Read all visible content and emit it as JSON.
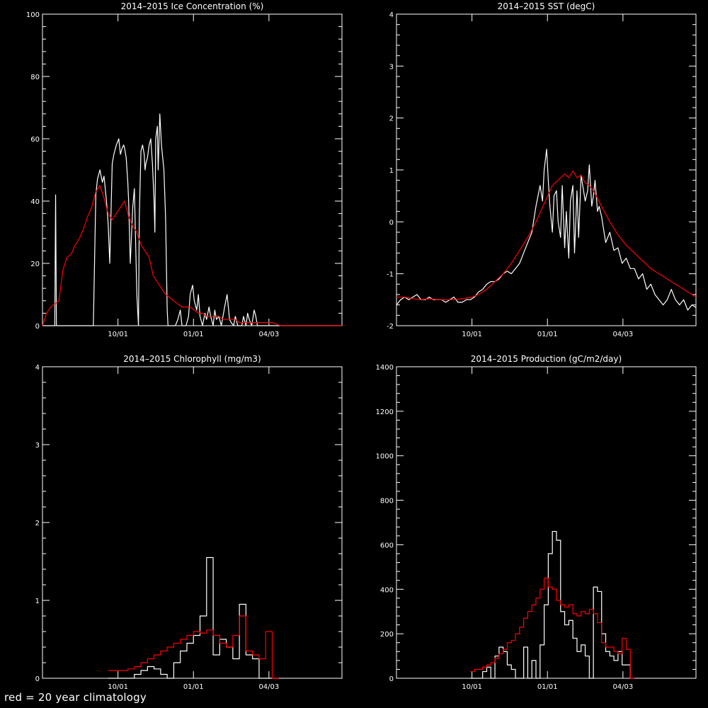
{
  "footnote": "red = 20 year climatology",
  "colors": {
    "background": "#000000",
    "axes": "#ffffff",
    "observed": "#ffffff",
    "climatology": "#ff0000"
  },
  "chart_data": [
    {
      "type": "line",
      "title": "2014–2015 Ice Concentration (%)",
      "xlabel": "",
      "ylabel": "",
      "xlim": [
        0,
        365
      ],
      "ylim": [
        0,
        100
      ],
      "xticks": [
        {
          "pos": 92,
          "label": "10/01"
        },
        {
          "pos": 184,
          "label": "01/01"
        },
        {
          "pos": 276,
          "label": "04/03"
        }
      ],
      "yticks": [
        0,
        20,
        40,
        60,
        80,
        100
      ],
      "step": false,
      "series": [
        {
          "role": "observed",
          "x": [
            0,
            10,
            15,
            16,
            17,
            20,
            22,
            23,
            26,
            28,
            30,
            33,
            35,
            37,
            40,
            42,
            45,
            48,
            50,
            52,
            55,
            58,
            60,
            62,
            65,
            67,
            70,
            73,
            75,
            78,
            80,
            82,
            85,
            87,
            90,
            93,
            95,
            97,
            99,
            100,
            102,
            104,
            105,
            106,
            107,
            110,
            112,
            115,
            117,
            118,
            120,
            122,
            124,
            125,
            126,
            128,
            130,
            132,
            134,
            136,
            137,
            138,
            140,
            141,
            143,
            145,
            148,
            150,
            151,
            152,
            153,
            155,
            156,
            157,
            160,
            162,
            165,
            168,
            170,
            172,
            175,
            178,
            180,
            183,
            185,
            188,
            190,
            192,
            195,
            198,
            200,
            203,
            205,
            208,
            210,
            212,
            215,
            218,
            220,
            222,
            225,
            228,
            230,
            233,
            235,
            238,
            240,
            243,
            245,
            248,
            250,
            252,
            255,
            258,
            260,
            262,
            265,
            270,
            275,
            280,
            290,
            300,
            310,
            320,
            340,
            365
          ],
          "y": [
            0,
            0,
            0,
            42,
            0,
            0,
            0,
            0,
            0,
            0,
            0,
            0,
            0,
            0,
            0,
            0,
            0,
            0,
            0,
            0,
            0,
            0,
            0,
            0,
            42,
            47,
            50,
            46,
            48,
            40,
            33,
            20,
            52,
            55,
            58,
            60,
            55,
            57,
            58,
            57,
            54,
            46,
            40,
            30,
            20,
            38,
            44,
            10,
            0,
            35,
            56,
            58,
            55,
            50,
            52,
            54,
            58,
            60,
            52,
            40,
            30,
            60,
            64,
            50,
            68,
            58,
            50,
            35,
            20,
            5,
            0,
            0,
            0,
            0,
            0,
            0,
            2,
            5,
            0,
            0,
            0,
            3,
            10,
            13,
            8,
            5,
            10,
            3,
            0,
            4,
            2,
            6,
            3,
            0,
            5,
            2,
            3,
            0,
            3,
            6,
            10,
            2,
            1,
            0,
            3,
            0,
            0,
            0,
            3,
            0,
            4,
            2,
            0,
            5,
            3,
            0,
            0,
            0,
            0,
            0,
            0,
            0,
            0,
            0,
            0,
            0
          ]
        },
        {
          "role": "climatology",
          "x": [
            0,
            5,
            10,
            15,
            20,
            25,
            30,
            35,
            40,
            45,
            50,
            55,
            60,
            65,
            70,
            75,
            80,
            85,
            90,
            95,
            100,
            105,
            110,
            115,
            120,
            125,
            130,
            135,
            140,
            145,
            150,
            155,
            160,
            165,
            170,
            175,
            180,
            185,
            190,
            195,
            200,
            205,
            210,
            215,
            220,
            225,
            230,
            235,
            240,
            245,
            250,
            260,
            270,
            280,
            290,
            300,
            310,
            320,
            330,
            340,
            350,
            365
          ],
          "y": [
            0,
            4,
            6,
            7,
            8,
            18,
            22,
            23,
            26,
            28,
            31,
            35,
            38,
            43,
            45,
            41,
            36,
            34,
            36,
            38,
            40,
            35,
            32,
            30,
            26,
            24,
            22,
            16,
            14,
            12,
            10,
            9,
            8,
            7,
            6,
            6,
            6,
            5,
            4,
            4,
            3,
            3,
            3,
            3,
            2,
            2,
            2,
            2,
            1,
            1,
            1,
            1,
            1,
            1,
            0,
            0,
            0,
            0,
            0,
            0,
            0,
            0
          ]
        }
      ]
    },
    {
      "type": "line",
      "title": "2014–2015 SST (degC)",
      "xlabel": "",
      "ylabel": "",
      "xlim": [
        0,
        365
      ],
      "ylim": [
        -2,
        4
      ],
      "xticks": [
        {
          "pos": 92,
          "label": "10/01"
        },
        {
          "pos": 184,
          "label": "01/01"
        },
        {
          "pos": 276,
          "label": "04/03"
        }
      ],
      "yticks": [
        -2,
        -1,
        0,
        1,
        2,
        3,
        4
      ],
      "step": false,
      "series": [
        {
          "role": "observed",
          "x": [
            0,
            5,
            10,
            15,
            20,
            25,
            30,
            35,
            40,
            45,
            50,
            55,
            60,
            65,
            70,
            75,
            80,
            85,
            90,
            95,
            100,
            105,
            110,
            115,
            120,
            125,
            130,
            135,
            140,
            145,
            150,
            155,
            160,
            165,
            170,
            175,
            178,
            180,
            183,
            185,
            187,
            190,
            192,
            195,
            197,
            200,
            202,
            205,
            207,
            210,
            212,
            215,
            217,
            220,
            222,
            225,
            227,
            230,
            233,
            235,
            238,
            240,
            242,
            245,
            247,
            250,
            255,
            260,
            265,
            270,
            275,
            280,
            285,
            290,
            295,
            300,
            305,
            310,
            315,
            320,
            325,
            330,
            335,
            340,
            345,
            350,
            355,
            360,
            365
          ],
          "y": [
            -1.6,
            -1.5,
            -1.45,
            -1.5,
            -1.45,
            -1.4,
            -1.5,
            -1.5,
            -1.45,
            -1.5,
            -1.5,
            -1.5,
            -1.55,
            -1.5,
            -1.45,
            -1.55,
            -1.55,
            -1.5,
            -1.5,
            -1.45,
            -1.35,
            -1.3,
            -1.2,
            -1.15,
            -1.15,
            -1.1,
            -1.0,
            -0.95,
            -1.0,
            -0.9,
            -0.8,
            -0.6,
            -0.4,
            -0.2,
            0.3,
            0.7,
            0.4,
            1.0,
            1.4,
            0.8,
            0.3,
            -0.2,
            0.5,
            0.6,
            0.0,
            -0.3,
            0.7,
            -0.5,
            0.2,
            -0.7,
            0.4,
            0.7,
            -0.6,
            0.6,
            -0.3,
            0.9,
            0.7,
            0.4,
            0.6,
            1.1,
            0.3,
            0.5,
            0.8,
            0.2,
            0.3,
            0.1,
            -0.4,
            -0.2,
            -0.55,
            -0.5,
            -0.8,
            -0.7,
            -0.9,
            -0.9,
            -1.1,
            -1.0,
            -1.3,
            -1.2,
            -1.4,
            -1.5,
            -1.6,
            -1.5,
            -1.3,
            -1.5,
            -1.6,
            -1.5,
            -1.7,
            -1.6,
            -1.65
          ]
        },
        {
          "role": "climatology",
          "x": [
            0,
            10,
            20,
            30,
            40,
            50,
            60,
            70,
            80,
            90,
            100,
            110,
            120,
            130,
            140,
            150,
            160,
            170,
            180,
            190,
            200,
            205,
            210,
            215,
            220,
            225,
            230,
            235,
            240,
            250,
            260,
            270,
            280,
            290,
            300,
            310,
            320,
            330,
            340,
            350,
            360,
            365
          ],
          "y": [
            -1.45,
            -1.45,
            -1.48,
            -1.5,
            -1.48,
            -1.5,
            -1.5,
            -1.5,
            -1.48,
            -1.46,
            -1.4,
            -1.3,
            -1.15,
            -1.0,
            -0.8,
            -0.55,
            -0.3,
            0.0,
            0.35,
            0.7,
            0.85,
            0.92,
            0.85,
            0.98,
            0.85,
            0.9,
            0.75,
            0.7,
            0.6,
            0.3,
            0.0,
            -0.25,
            -0.45,
            -0.6,
            -0.75,
            -0.9,
            -1.0,
            -1.1,
            -1.2,
            -1.3,
            -1.4,
            -1.45
          ]
        }
      ]
    },
    {
      "type": "line",
      "title": "2014–2015 Chlorophyll (mg/m3)",
      "xlabel": "",
      "ylabel": "",
      "xlim": [
        0,
        365
      ],
      "ylim": [
        0,
        4
      ],
      "xticks": [
        {
          "pos": 92,
          "label": "10/01"
        },
        {
          "pos": 184,
          "label": "01/01"
        },
        {
          "pos": 276,
          "label": "04/03"
        }
      ],
      "yticks": [
        0,
        1,
        2,
        3,
        4
      ],
      "step": true,
      "series": [
        {
          "role": "observed",
          "x": [
            80,
            112,
            120,
            128,
            136,
            144,
            152,
            160,
            168,
            176,
            184,
            192,
            200,
            208,
            216,
            224,
            232,
            240,
            248,
            256,
            264,
            272,
            280,
            288
          ],
          "y": [
            0,
            0.05,
            0.1,
            0.15,
            0.12,
            0.05,
            0.0,
            0.2,
            0.35,
            0.45,
            0.55,
            0.8,
            1.55,
            0.3,
            0.5,
            0.4,
            0.25,
            0.95,
            0.3,
            0.25,
            0,
            0,
            0,
            0
          ]
        },
        {
          "role": "climatology",
          "x": [
            80,
            88,
            96,
            104,
            112,
            120,
            128,
            136,
            144,
            152,
            160,
            168,
            176,
            184,
            192,
            200,
            208,
            216,
            224,
            232,
            240,
            248,
            256,
            264,
            272,
            280,
            288
          ],
          "y": [
            0.1,
            0.1,
            0.1,
            0.12,
            0.15,
            0.2,
            0.25,
            0.3,
            0.35,
            0.4,
            0.45,
            0.5,
            0.55,
            0.6,
            0.58,
            0.62,
            0.55,
            0.45,
            0.4,
            0.55,
            0.8,
            0.35,
            0.3,
            0.25,
            0.6,
            0,
            0
          ]
        }
      ]
    },
    {
      "type": "line",
      "title": "2014–2015 Production (gC/m2/day)",
      "xlabel": "",
      "ylabel": "",
      "xlim": [
        0,
        365
      ],
      "ylim": [
        0,
        1400
      ],
      "xticks": [
        {
          "pos": 92,
          "label": "10/01"
        },
        {
          "pos": 184,
          "label": "01/01"
        },
        {
          "pos": 276,
          "label": "04/03"
        }
      ],
      "yticks": [
        0,
        200,
        400,
        600,
        800,
        1000,
        1200,
        1400
      ],
      "step": true,
      "series": [
        {
          "role": "observed",
          "x": [
            90,
            100,
            105,
            110,
            115,
            120,
            125,
            130,
            135,
            140,
            145,
            150,
            155,
            160,
            165,
            170,
            175,
            180,
            185,
            190,
            195,
            200,
            205,
            210,
            215,
            220,
            225,
            230,
            235,
            240,
            245,
            250,
            255,
            260,
            265,
            270,
            275,
            280,
            285,
            290
          ],
          "y": [
            0,
            0,
            30,
            50,
            0,
            100,
            140,
            120,
            60,
            40,
            0,
            0,
            140,
            0,
            80,
            0,
            150,
            330,
            560,
            660,
            620,
            300,
            240,
            260,
            180,
            120,
            150,
            100,
            0,
            410,
            390,
            200,
            120,
            100,
            80,
            120,
            60,
            60,
            0,
            0
          ]
        },
        {
          "role": "climatology",
          "x": [
            90,
            95,
            100,
            105,
            110,
            115,
            120,
            125,
            130,
            135,
            140,
            145,
            150,
            155,
            160,
            165,
            170,
            175,
            180,
            185,
            190,
            195,
            200,
            205,
            210,
            215,
            220,
            225,
            230,
            235,
            240,
            245,
            250,
            255,
            260,
            265,
            270,
            275,
            280,
            285,
            290
          ],
          "y": [
            30,
            40,
            40,
            50,
            60,
            70,
            90,
            110,
            130,
            160,
            170,
            200,
            230,
            270,
            300,
            330,
            360,
            400,
            450,
            410,
            400,
            350,
            330,
            320,
            330,
            290,
            280,
            300,
            290,
            310,
            290,
            250,
            160,
            140,
            140,
            120,
            110,
            180,
            130,
            0,
            0
          ]
        }
      ]
    }
  ]
}
